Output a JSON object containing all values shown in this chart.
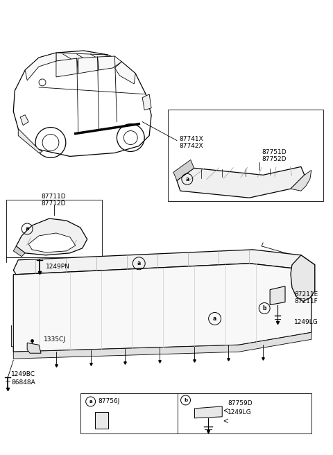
{
  "background_color": "#ffffff",
  "line_color": "#000000",
  "fig_width": 4.8,
  "fig_height": 6.56,
  "dpi": 100,
  "car_label_87741X": "87741X",
  "car_label_87742X": "87742X",
  "label_87751D": "87751D",
  "label_87752D": "87752D",
  "label_87711D": "87711D",
  "label_87712D": "87712D",
  "label_1249PN": "1249PN",
  "label_1335CJ": "1335CJ",
  "label_1249BC": "1249BC",
  "label_86848A": "86848A",
  "label_87211E": "87211E",
  "label_87211F": "87211F",
  "label_1249LG": "1249LG",
  "label_87756J": "87756J",
  "label_87759D": "87759D",
  "label_1249LG2": "1249LG"
}
